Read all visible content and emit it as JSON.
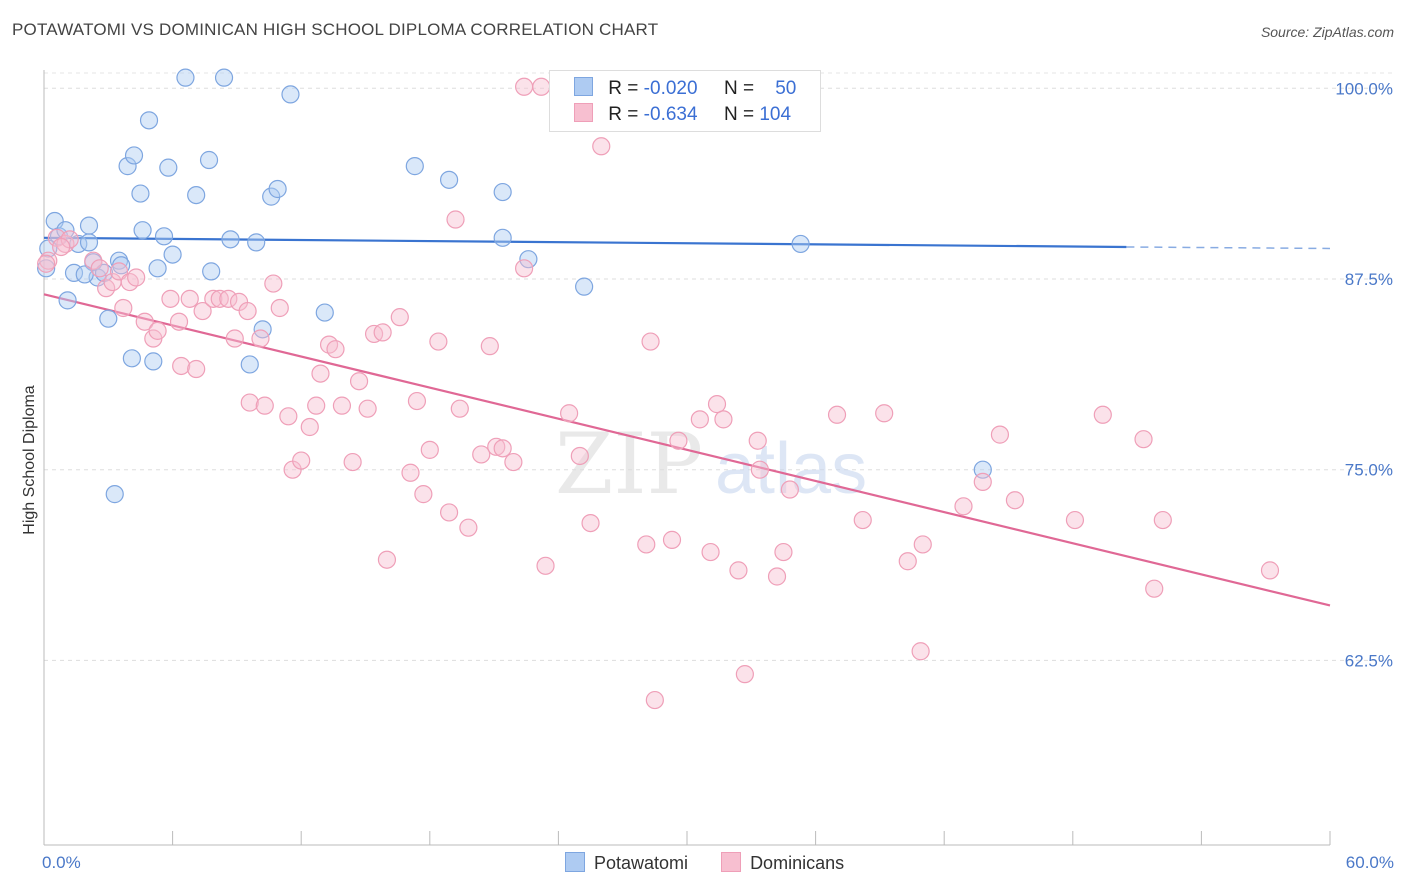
{
  "title": "POTAWATOMI VS DOMINICAN HIGH SCHOOL DIPLOMA CORRELATION CHART",
  "source": "Source: ZipAtlas.com",
  "watermark": {
    "part1": "ZIP",
    "part2": "atlas"
  },
  "legend_top": [
    {
      "r_label": "R =",
      "r_value": "-0.020",
      "n_label": "N =",
      "n_value": "50",
      "color": "#aecbf2",
      "border": "#7ea6e0"
    },
    {
      "r_label": "R =",
      "r_value": "-0.634",
      "n_label": "N =",
      "n_value": "104",
      "color": "#f7bfd0",
      "border": "#ef9fb8"
    }
  ],
  "legend_bottom": [
    {
      "label": "Potawatomi",
      "color": "#aecbf2",
      "border": "#7ea6e0"
    },
    {
      "label": "Dominicans",
      "color": "#f7bfd0",
      "border": "#ef9fb8"
    }
  ],
  "chart_data": {
    "type": "scatter",
    "title": "POTAWATOMI VS DOMINICAN HIGH SCHOOL DIPLOMA CORRELATION CHART",
    "xlabel": "",
    "ylabel": "High School Diploma",
    "x_tick_labels": [
      "0.0%",
      "60.0%"
    ],
    "y_tick_labels": [
      "100.0%",
      "87.5%",
      "75.0%",
      "62.5%"
    ],
    "y_ticks": [
      100.0,
      87.5,
      75.0,
      62.5
    ],
    "xlim": [
      0,
      60
    ],
    "ylim": [
      50.4,
      101.2
    ],
    "grid": true,
    "legend": "top-center",
    "series": [
      {
        "name": "Potawatomi",
        "color": "#7ea6e0",
        "fill": "#aecbf2",
        "trend": {
          "x": [
            0,
            50.5
          ],
          "y": [
            90.2,
            89.6
          ],
          "dashed_to": [
            60,
            89.5
          ],
          "color": "#3a74d0"
        },
        "points": [
          [
            0.1,
            88.2
          ],
          [
            0.5,
            91.3
          ],
          [
            0.7,
            90.3
          ],
          [
            1.0,
            90.7
          ],
          [
            1.1,
            86.1
          ],
          [
            1.4,
            87.9
          ],
          [
            1.6,
            89.8
          ],
          [
            2.1,
            89.9
          ],
          [
            2.1,
            91.0
          ],
          [
            2.3,
            88.6
          ],
          [
            2.5,
            87.6
          ],
          [
            2.8,
            87.9
          ],
          [
            3.0,
            84.9
          ],
          [
            3.3,
            73.4
          ],
          [
            3.5,
            88.7
          ],
          [
            3.6,
            88.4
          ],
          [
            3.9,
            94.9
          ],
          [
            4.1,
            82.3
          ],
          [
            4.2,
            95.6
          ],
          [
            4.5,
            93.1
          ],
          [
            4.6,
            90.7
          ],
          [
            4.9,
            97.9
          ],
          [
            5.1,
            82.1
          ],
          [
            5.3,
            88.2
          ],
          [
            5.6,
            90.3
          ],
          [
            5.8,
            94.8
          ],
          [
            6.0,
            89.1
          ],
          [
            6.6,
            100.7
          ],
          [
            7.1,
            93.0
          ],
          [
            7.7,
            95.3
          ],
          [
            7.8,
            88.0
          ],
          [
            8.4,
            100.7
          ],
          [
            8.7,
            90.1
          ],
          [
            9.9,
            89.9
          ],
          [
            9.6,
            81.9
          ],
          [
            10.2,
            84.2
          ],
          [
            10.6,
            92.9
          ],
          [
            10.9,
            93.4
          ],
          [
            11.5,
            99.6
          ],
          [
            13.1,
            85.3
          ],
          [
            17.3,
            94.9
          ],
          [
            18.9,
            94.0
          ],
          [
            21.4,
            93.2
          ],
          [
            21.4,
            90.2
          ],
          [
            22.6,
            88.8
          ],
          [
            25.2,
            87.0
          ],
          [
            35.3,
            89.8
          ],
          [
            43.8,
            75.0
          ],
          [
            0.2,
            89.5
          ],
          [
            1.9,
            87.8
          ]
        ]
      },
      {
        "name": "Dominicans",
        "color": "#ef9fb8",
        "fill": "#f7bfd0",
        "trend": {
          "x": [
            0,
            60
          ],
          "y": [
            86.5,
            66.1
          ],
          "color": "#e06895"
        },
        "points": [
          [
            0.2,
            88.7
          ],
          [
            0.6,
            90.2
          ],
          [
            1.0,
            89.8
          ],
          [
            1.2,
            90.1
          ],
          [
            2.3,
            88.7
          ],
          [
            2.6,
            88.2
          ],
          [
            2.9,
            86.9
          ],
          [
            3.2,
            87.3
          ],
          [
            3.5,
            88.0
          ],
          [
            3.7,
            85.6
          ],
          [
            4.0,
            87.3
          ],
          [
            4.3,
            87.6
          ],
          [
            4.7,
            84.7
          ],
          [
            5.1,
            83.6
          ],
          [
            5.3,
            84.1
          ],
          [
            5.9,
            86.2
          ],
          [
            6.3,
            84.7
          ],
          [
            6.4,
            81.8
          ],
          [
            6.8,
            86.2
          ],
          [
            7.1,
            81.6
          ],
          [
            7.4,
            85.4
          ],
          [
            7.9,
            86.2
          ],
          [
            8.2,
            86.2
          ],
          [
            8.6,
            86.2
          ],
          [
            8.9,
            83.6
          ],
          [
            9.1,
            86.0
          ],
          [
            9.5,
            85.4
          ],
          [
            9.6,
            79.4
          ],
          [
            10.1,
            83.6
          ],
          [
            10.3,
            79.2
          ],
          [
            10.7,
            87.2
          ],
          [
            11.0,
            85.6
          ],
          [
            11.4,
            78.5
          ],
          [
            11.6,
            75.0
          ],
          [
            12.0,
            75.6
          ],
          [
            12.4,
            77.8
          ],
          [
            12.7,
            79.2
          ],
          [
            12.9,
            81.3
          ],
          [
            13.3,
            83.2
          ],
          [
            13.6,
            82.9
          ],
          [
            13.9,
            79.2
          ],
          [
            14.4,
            75.5
          ],
          [
            14.7,
            80.8
          ],
          [
            15.1,
            79.0
          ],
          [
            15.4,
            83.9
          ],
          [
            15.8,
            84.0
          ],
          [
            16.0,
            69.1
          ],
          [
            16.6,
            85.0
          ],
          [
            17.1,
            74.8
          ],
          [
            17.4,
            79.5
          ],
          [
            17.7,
            73.4
          ],
          [
            18.0,
            76.3
          ],
          [
            18.4,
            83.4
          ],
          [
            18.9,
            72.2
          ],
          [
            19.2,
            91.4
          ],
          [
            19.4,
            79.0
          ],
          [
            19.8,
            71.2
          ],
          [
            20.4,
            76.0
          ],
          [
            20.8,
            83.1
          ],
          [
            21.1,
            76.5
          ],
          [
            21.4,
            76.4
          ],
          [
            21.9,
            75.5
          ],
          [
            22.4,
            88.2
          ],
          [
            22.4,
            100.1
          ],
          [
            23.2,
            100.1
          ],
          [
            23.4,
            68.7
          ],
          [
            24.5,
            78.7
          ],
          [
            25.0,
            75.9
          ],
          [
            25.5,
            71.5
          ],
          [
            26.0,
            96.2
          ],
          [
            28.1,
            70.1
          ],
          [
            28.3,
            83.4
          ],
          [
            28.5,
            59.9
          ],
          [
            29.3,
            70.4
          ],
          [
            29.6,
            76.9
          ],
          [
            30.6,
            78.3
          ],
          [
            31.1,
            69.6
          ],
          [
            31.4,
            79.3
          ],
          [
            31.7,
            78.3
          ],
          [
            32.4,
            68.4
          ],
          [
            32.7,
            61.6
          ],
          [
            33.3,
            76.9
          ],
          [
            33.4,
            75.0
          ],
          [
            34.2,
            68.0
          ],
          [
            34.5,
            69.6
          ],
          [
            34.8,
            73.7
          ],
          [
            37.0,
            78.6
          ],
          [
            38.2,
            71.7
          ],
          [
            39.2,
            78.7
          ],
          [
            40.3,
            69.0
          ],
          [
            40.9,
            63.1
          ],
          [
            41.0,
            70.1
          ],
          [
            42.9,
            72.6
          ],
          [
            43.8,
            74.2
          ],
          [
            44.6,
            77.3
          ],
          [
            45.3,
            73.0
          ],
          [
            48.1,
            71.7
          ],
          [
            49.4,
            78.6
          ],
          [
            51.3,
            77.0
          ],
          [
            51.8,
            67.2
          ],
          [
            52.2,
            71.7
          ],
          [
            57.2,
            68.4
          ],
          [
            0.1,
            88.5
          ],
          [
            0.8,
            89.6
          ]
        ]
      }
    ]
  }
}
